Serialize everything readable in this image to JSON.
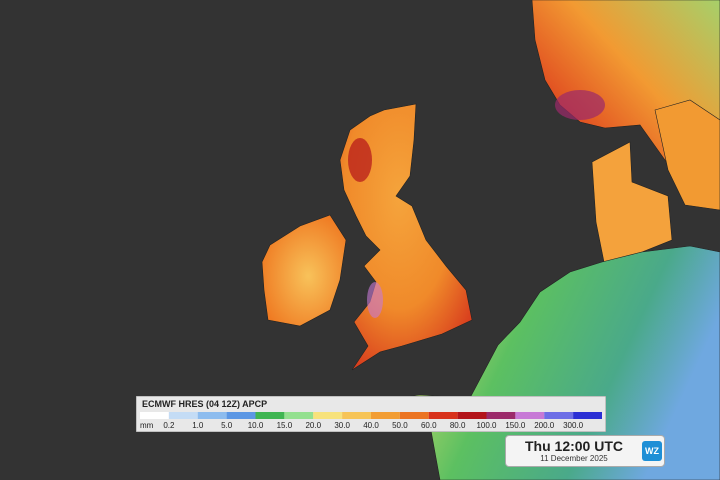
{
  "legend": {
    "title": "ECMWF HRES (04 12Z) APCP",
    "unit": "mm",
    "labels": [
      "0.2",
      "1.0",
      "5.0",
      "10.0",
      "15.0",
      "20.0",
      "30.0",
      "40.0",
      "50.0",
      "60.0",
      "80.0",
      "100.0",
      "150.0",
      "200.0",
      "300.0"
    ],
    "colors": [
      "#ffffff",
      "#c4dcf5",
      "#8dbcee",
      "#5c97e4",
      "#3fb552",
      "#93e08f",
      "#f7e27c",
      "#f6c457",
      "#f29d33",
      "#eb7422",
      "#d8321b",
      "#b3141a",
      "#9b2a6a",
      "#c779d6",
      "#6d6ee6",
      "#2b2fd4"
    ]
  },
  "time": {
    "label": "Thu 12:00 UTC",
    "date": "11 December 2025",
    "logo": "WZ"
  }
}
